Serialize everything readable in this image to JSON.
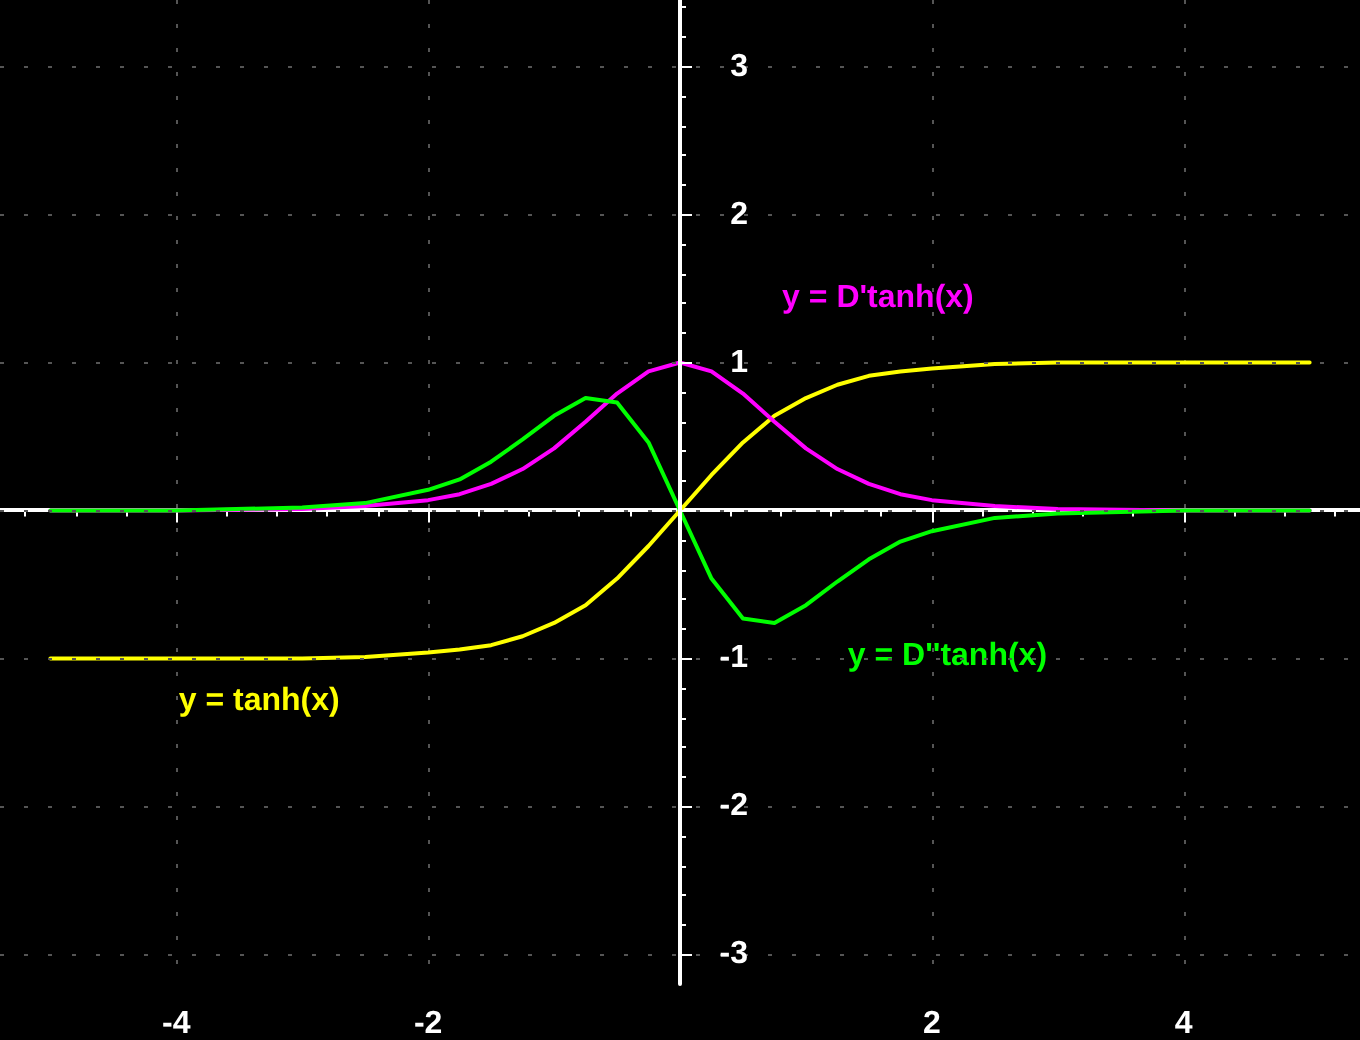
{
  "chart_data": {
    "type": "line",
    "x": [
      -5,
      -4,
      -3,
      -2.5,
      -2,
      -1.75,
      -1.5,
      -1.25,
      -1,
      -0.75,
      -0.5,
      -0.25,
      0,
      0.25,
      0.5,
      0.75,
      1,
      1.25,
      1.5,
      1.75,
      2,
      2.5,
      3,
      4,
      5
    ],
    "series": [
      {
        "name": "y = tanh(x)",
        "color": "#ffff00",
        "values": [
          -1,
          -1,
          -1,
          -0.99,
          -0.96,
          -0.94,
          -0.91,
          -0.85,
          -0.76,
          -0.64,
          -0.46,
          -0.24,
          0,
          0.24,
          0.46,
          0.64,
          0.76,
          0.85,
          0.91,
          0.94,
          0.96,
          0.99,
          1,
          1,
          1
        ]
      },
      {
        "name": "y = D'tanh(x)",
        "color": "#ff00ff",
        "values": [
          0,
          0,
          0.01,
          0.03,
          0.07,
          0.11,
          0.18,
          0.28,
          0.42,
          0.6,
          0.79,
          0.94,
          1,
          0.94,
          0.79,
          0.6,
          0.42,
          0.28,
          0.18,
          0.11,
          0.07,
          0.03,
          0.01,
          0,
          0
        ]
      },
      {
        "name": "y = D''tanh(x)",
        "color": "#00ff00",
        "values": [
          0,
          0,
          0.02,
          0.05,
          0.14,
          0.21,
          0.33,
          0.48,
          0.64,
          0.76,
          0.73,
          0.46,
          0,
          -0.46,
          -0.73,
          -0.76,
          -0.64,
          -0.48,
          -0.33,
          -0.21,
          -0.14,
          -0.05,
          -0.02,
          0,
          0
        ]
      }
    ],
    "xlim": [
      -5.4,
      5.4
    ],
    "ylim": [
      -3.2,
      3.45
    ],
    "xticks": [
      -4,
      -2,
      {
        "value": 0,
        "label": null
      },
      2,
      4
    ],
    "yticks": [
      -3,
      -2,
      -1,
      {
        "value": 0,
        "label": null
      },
      1,
      2,
      3
    ],
    "grid": true,
    "legend": false,
    "marker": "none",
    "line_style": "solid"
  }
}
